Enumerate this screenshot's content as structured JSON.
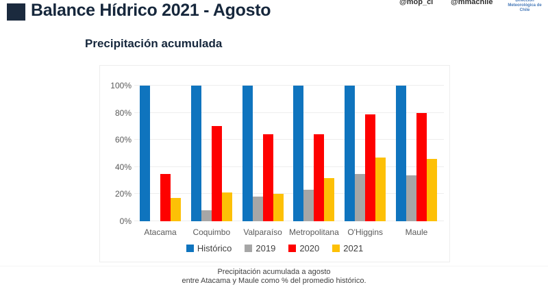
{
  "header": {
    "title": "Balance Hídrico 2021 - Agosto",
    "handles": {
      "mop": "@mop_cl",
      "mma": "@mmachile"
    },
    "logo": "Dirección Meteorológica de Chile"
  },
  "subtitle": "Precipitación acumulada",
  "footer": {
    "line1": "Precipitación acumulada a agosto",
    "line2": "entre Atacama y Maule como % del promedio histórico."
  },
  "colors": {
    "title": "#16273c",
    "title_square": "#1b2a3e",
    "axis_text": "#595959",
    "gridline": "#ededed"
  },
  "chart_data": {
    "type": "bar",
    "title": "Precipitación acumulada",
    "categories": [
      "Atacama",
      "Coquimbo",
      "Valparaíso",
      "Metropolitana",
      "O'Higgins",
      "Maule"
    ],
    "series": [
      {
        "name": "Histórico",
        "color": "#0f74be",
        "values": [
          100,
          100,
          100,
          100,
          100,
          100
        ]
      },
      {
        "name": "2019",
        "color": "#a6a6a6",
        "values": [
          0,
          8,
          18,
          23,
          35,
          34
        ]
      },
      {
        "name": "2020",
        "color": "#fe0100",
        "values": [
          35,
          70,
          64,
          64,
          79,
          80
        ]
      },
      {
        "name": "2021",
        "color": "#fdc006",
        "values": [
          17,
          21,
          20,
          32,
          47,
          46
        ]
      }
    ],
    "ylim": [
      0,
      100
    ],
    "ytick_step": 20,
    "ytick_labels": [
      "0%",
      "20%",
      "40%",
      "60%",
      "80%",
      "100%"
    ],
    "grid": true,
    "legend_position": "bottom"
  }
}
